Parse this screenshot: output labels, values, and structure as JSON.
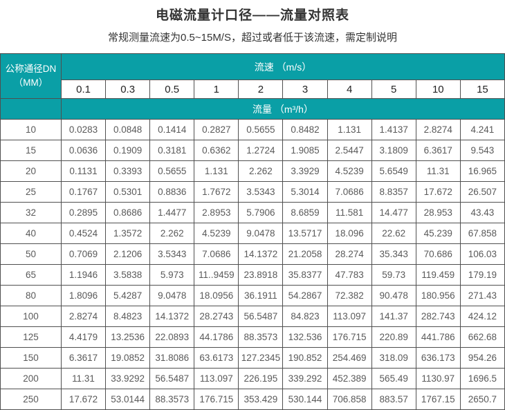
{
  "page": {
    "title": "电磁流量计口径——流量对照表",
    "subtitle": "常规测量流速为0.5~15M/S，超过或者低于该流速，需定制说明"
  },
  "chart_data": {
    "type": "table",
    "title": "电磁流量计口径——流量对照表",
    "corner_header": {
      "line1": "公称通径DN",
      "line2": "（MM）"
    },
    "velocity_header": "流速 （m/s）",
    "flow_header": "流量 （m³/h）",
    "velocities": [
      "0.1",
      "0.3",
      "0.5",
      "1",
      "2",
      "3",
      "4",
      "5",
      "10",
      "15"
    ],
    "rows": [
      {
        "dn": "10",
        "values": [
          "0.0283",
          "0.0848",
          "0.1414",
          "0.2827",
          "0.5655",
          "0.8482",
          "1.131",
          "1.4137",
          "2.8274",
          "4.241"
        ]
      },
      {
        "dn": "15",
        "values": [
          "0.0636",
          "0.1909",
          "0.3181",
          "0.6362",
          "1.2724",
          "1.9085",
          "2.5447",
          "3.1809",
          "6.3617",
          "9.543"
        ]
      },
      {
        "dn": "20",
        "values": [
          "0.1131",
          "0.3393",
          "0.5655",
          "1.131",
          "2.262",
          "3.3929",
          "4.5239",
          "5.6549",
          "11.31",
          "16.965"
        ]
      },
      {
        "dn": "25",
        "values": [
          "0.1767",
          "0.5301",
          "0.8836",
          "1.7672",
          "3.5343",
          "5.3014",
          "7.0686",
          "8.8357",
          "17.672",
          "26.507"
        ]
      },
      {
        "dn": "32",
        "values": [
          "0.2895",
          "0.8686",
          "1.4477",
          "2.8953",
          "5.7906",
          "8.6859",
          "11.581",
          "14.477",
          "28.953",
          "43.43"
        ]
      },
      {
        "dn": "40",
        "values": [
          "0.4524",
          "1.3572",
          "2.262",
          "4.5239",
          "9.0478",
          "13.5717",
          "18.096",
          "22.62",
          "45.239",
          "67.858"
        ]
      },
      {
        "dn": "50",
        "values": [
          "0.7069",
          "2.1206",
          "3.5343",
          "7.0686",
          "14.1372",
          "21.2058",
          "28.274",
          "35.343",
          "70.686",
          "106.03"
        ]
      },
      {
        "dn": "65",
        "values": [
          "1.1946",
          "3.5838",
          "5.973",
          "11..9459",
          "23.8918",
          "35.8377",
          "47.783",
          "59.73",
          "119.459",
          "179.19"
        ]
      },
      {
        "dn": "80",
        "values": [
          "1.8096",
          "5.4287",
          "9.0478",
          "18.0956",
          "36.1911",
          "54.2867",
          "72.382",
          "90.478",
          "180.956",
          "271.43"
        ]
      },
      {
        "dn": "100",
        "values": [
          "2.8274",
          "8.4823",
          "14.1372",
          "28.2743",
          "56.5487",
          "84.823",
          "113.097",
          "141.37",
          "282.743",
          "424.12"
        ]
      },
      {
        "dn": "125",
        "values": [
          "4.4179",
          "13.2536",
          "22.0893",
          "44.1786",
          "88.3573",
          "132.536",
          "176.715",
          "220.89",
          "441.786",
          "662.68"
        ]
      },
      {
        "dn": "150",
        "values": [
          "6.3617",
          "19.0852",
          "31.8086",
          "63.6173",
          "127.2345",
          "190.852",
          "254.469",
          "318.09",
          "636.173",
          "954.26"
        ]
      },
      {
        "dn": "200",
        "values": [
          "11.31",
          "33.9292",
          "56.5487",
          "113.097",
          "226.195",
          "339.292",
          "452.389",
          "565.49",
          "1130.97",
          "1696.5"
        ]
      },
      {
        "dn": "250",
        "values": [
          "17.672",
          "53.0144",
          "88.3573",
          "176.715",
          "353.429",
          "530.144",
          "706.858",
          "883.57",
          "1767.15",
          "2650.7"
        ]
      }
    ]
  },
  "colors": {
    "teal": "#0a9fa6",
    "border": "#4f4f4f",
    "data_text": "#595959",
    "title_text": "#333333"
  }
}
